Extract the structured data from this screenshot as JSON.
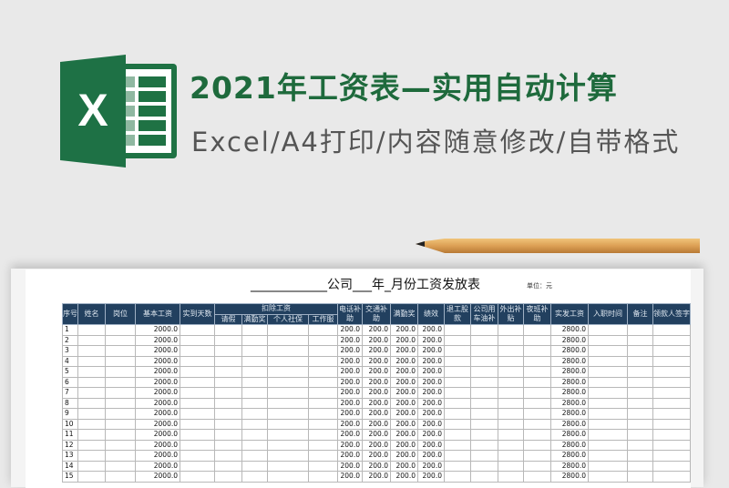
{
  "banner": {
    "title": "2021年工资表—实用自动计算",
    "subtitle": "Excel/A4打印/内容随意修改/自带格式",
    "logo_letter": "X",
    "colors": {
      "brand_green": "#1e6a3c",
      "header_fill": "#22405f"
    }
  },
  "sheet": {
    "title": "____________公司___年_月份工资发放表",
    "unit": "单位：元",
    "headers": {
      "seq": "序号",
      "name": "姓名",
      "post": "岗位",
      "base": "基本工资",
      "days": "实到天数",
      "deduct": "扣除工资",
      "leave": "请假",
      "attend_bonus_ded": "满勤奖",
      "social": "个人社保",
      "uniform": "工作服",
      "phone": "电话补助",
      "traffic": "交通补助",
      "attend": "满勤奖",
      "perf": "绩效",
      "share": "退工股款",
      "car": "公司用车油补",
      "out": "外出补贴",
      "night": "夜班补助",
      "pay": "实发工资",
      "hire": "入职时间",
      "note": "备注",
      "sign": "领款人签字"
    },
    "rows": [
      {
        "n": "1",
        "base": "2000.0",
        "phone": "200.0",
        "traffic": "200.0",
        "attend": "200.0",
        "perf": "200.0",
        "pay": "2800.0"
      },
      {
        "n": "2",
        "base": "2000.0",
        "phone": "200.0",
        "traffic": "200.0",
        "attend": "200.0",
        "perf": "200.0",
        "pay": "2800.0"
      },
      {
        "n": "3",
        "base": "2000.0",
        "phone": "200.0",
        "traffic": "200.0",
        "attend": "200.0",
        "perf": "200.0",
        "pay": "2800.0"
      },
      {
        "n": "4",
        "base": "2000.0",
        "phone": "200.0",
        "traffic": "200.0",
        "attend": "200.0",
        "perf": "200.0",
        "pay": "2800.0"
      },
      {
        "n": "5",
        "base": "2000.0",
        "phone": "200.0",
        "traffic": "200.0",
        "attend": "200.0",
        "perf": "200.0",
        "pay": "2800.0"
      },
      {
        "n": "6",
        "base": "2000.0",
        "phone": "200.0",
        "traffic": "200.0",
        "attend": "200.0",
        "perf": "200.0",
        "pay": "2800.0"
      },
      {
        "n": "7",
        "base": "2000.0",
        "phone": "200.0",
        "traffic": "200.0",
        "attend": "200.0",
        "perf": "200.0",
        "pay": "2800.0"
      },
      {
        "n": "8",
        "base": "2000.0",
        "phone": "200.0",
        "traffic": "200.0",
        "attend": "200.0",
        "perf": "200.0",
        "pay": "2800.0"
      },
      {
        "n": "9",
        "base": "2000.0",
        "phone": "200.0",
        "traffic": "200.0",
        "attend": "200.0",
        "perf": "200.0",
        "pay": "2800.0"
      },
      {
        "n": "10",
        "base": "2000.0",
        "phone": "200.0",
        "traffic": "200.0",
        "attend": "200.0",
        "perf": "200.0",
        "pay": "2800.0"
      },
      {
        "n": "11",
        "base": "2000.0",
        "phone": "200.0",
        "traffic": "200.0",
        "attend": "200.0",
        "perf": "200.0",
        "pay": "2800.0"
      },
      {
        "n": "12",
        "base": "2000.0",
        "phone": "200.0",
        "traffic": "200.0",
        "attend": "200.0",
        "perf": "200.0",
        "pay": "2800.0"
      },
      {
        "n": "13",
        "base": "2000.0",
        "phone": "200.0",
        "traffic": "200.0",
        "attend": "200.0",
        "perf": "200.0",
        "pay": "2800.0"
      },
      {
        "n": "14",
        "base": "2000.0",
        "phone": "200.0",
        "traffic": "200.0",
        "attend": "200.0",
        "perf": "200.0",
        "pay": "2800.0"
      },
      {
        "n": "15",
        "base": "2000.0",
        "phone": "200.0",
        "traffic": "200.0",
        "attend": "200.0",
        "perf": "200.0",
        "pay": "2800.0"
      }
    ]
  }
}
